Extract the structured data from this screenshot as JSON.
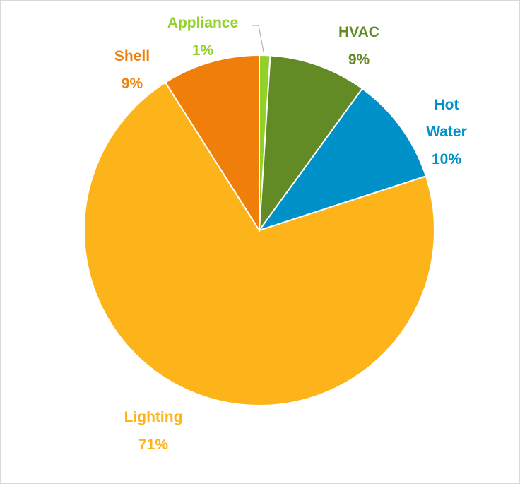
{
  "chart_data": {
    "type": "pie",
    "categories": [
      "Appliance",
      "HVAC",
      "Hot Water",
      "Lighting",
      "Shell"
    ],
    "values": [
      1,
      9,
      10,
      71,
      9
    ],
    "value_labels": [
      "1%",
      "9%",
      "10%",
      "71%",
      "9%"
    ],
    "colors": [
      "#92d12a",
      "#628b25",
      "#0091c9",
      "#fdb41b",
      "#f07e0a"
    ]
  }
}
